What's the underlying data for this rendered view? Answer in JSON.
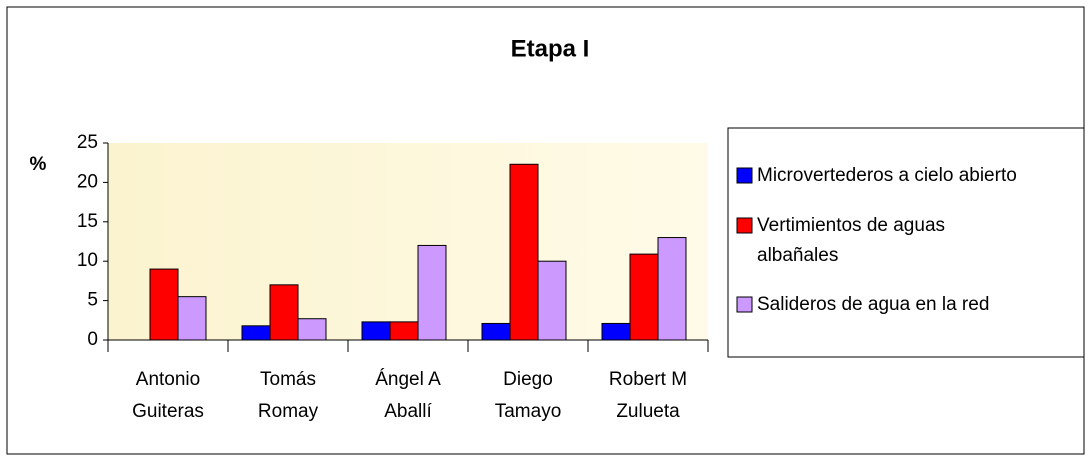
{
  "chart_data": {
    "type": "bar",
    "title": "Etapa I",
    "y_label": "%",
    "categories": [
      "Antonio Guiteras",
      "Tomás Romay",
      "Ángel A Aballí",
      "Diego Tamayo",
      "Robert M Zulueta"
    ],
    "series": [
      {
        "name": "Microvertederos a cielo abierto",
        "color": "#0000ff",
        "values": [
          0,
          1.8,
          2.3,
          2.1,
          2.1
        ]
      },
      {
        "name": "Vertimientos de aguas albañales",
        "color": "#ff0000",
        "values": [
          9,
          7,
          2.3,
          22.3,
          10.9
        ]
      },
      {
        "name": "Salideros de agua en la red",
        "color": "#cc99ff",
        "values": [
          5.5,
          2.7,
          12,
          10,
          13
        ]
      }
    ],
    "ylim": [
      0,
      25
    ],
    "yticks": [
      0,
      5,
      10,
      15,
      20,
      25
    ],
    "grid": false,
    "legend": "right"
  }
}
